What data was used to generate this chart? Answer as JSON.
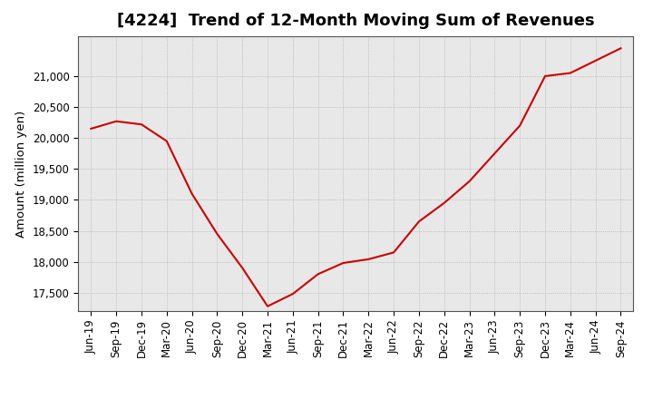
{
  "title": "[4224]  Trend of 12-Month Moving Sum of Revenues",
  "ylabel": "Amount (million yen)",
  "line_color": "#cc0000",
  "background_color": "#ffffff",
  "plot_bg_color": "#e8e8e8",
  "grid_color": "#aaaaaa",
  "x_labels": [
    "Jun-19",
    "Sep-19",
    "Dec-19",
    "Mar-20",
    "Jun-20",
    "Sep-20",
    "Dec-20",
    "Mar-21",
    "Jun-21",
    "Sep-21",
    "Dec-21",
    "Mar-22",
    "Jun-22",
    "Sep-22",
    "Dec-22",
    "Mar-23",
    "Jun-23",
    "Sep-23",
    "Dec-23",
    "Mar-24",
    "Jun-24",
    "Sep-24"
  ],
  "values": [
    20150,
    20270,
    20220,
    19950,
    19100,
    18450,
    17900,
    17280,
    17480,
    17800,
    17980,
    18040,
    18150,
    18650,
    18950,
    19300,
    19750,
    20200,
    21000,
    21050,
    21250,
    21450
  ],
  "ylim": [
    17200,
    21650
  ],
  "yticks": [
    17500,
    18000,
    18500,
    19000,
    19500,
    20000,
    20500,
    21000
  ],
  "title_fontsize": 13,
  "label_fontsize": 9.5,
  "tick_fontsize": 8.5
}
